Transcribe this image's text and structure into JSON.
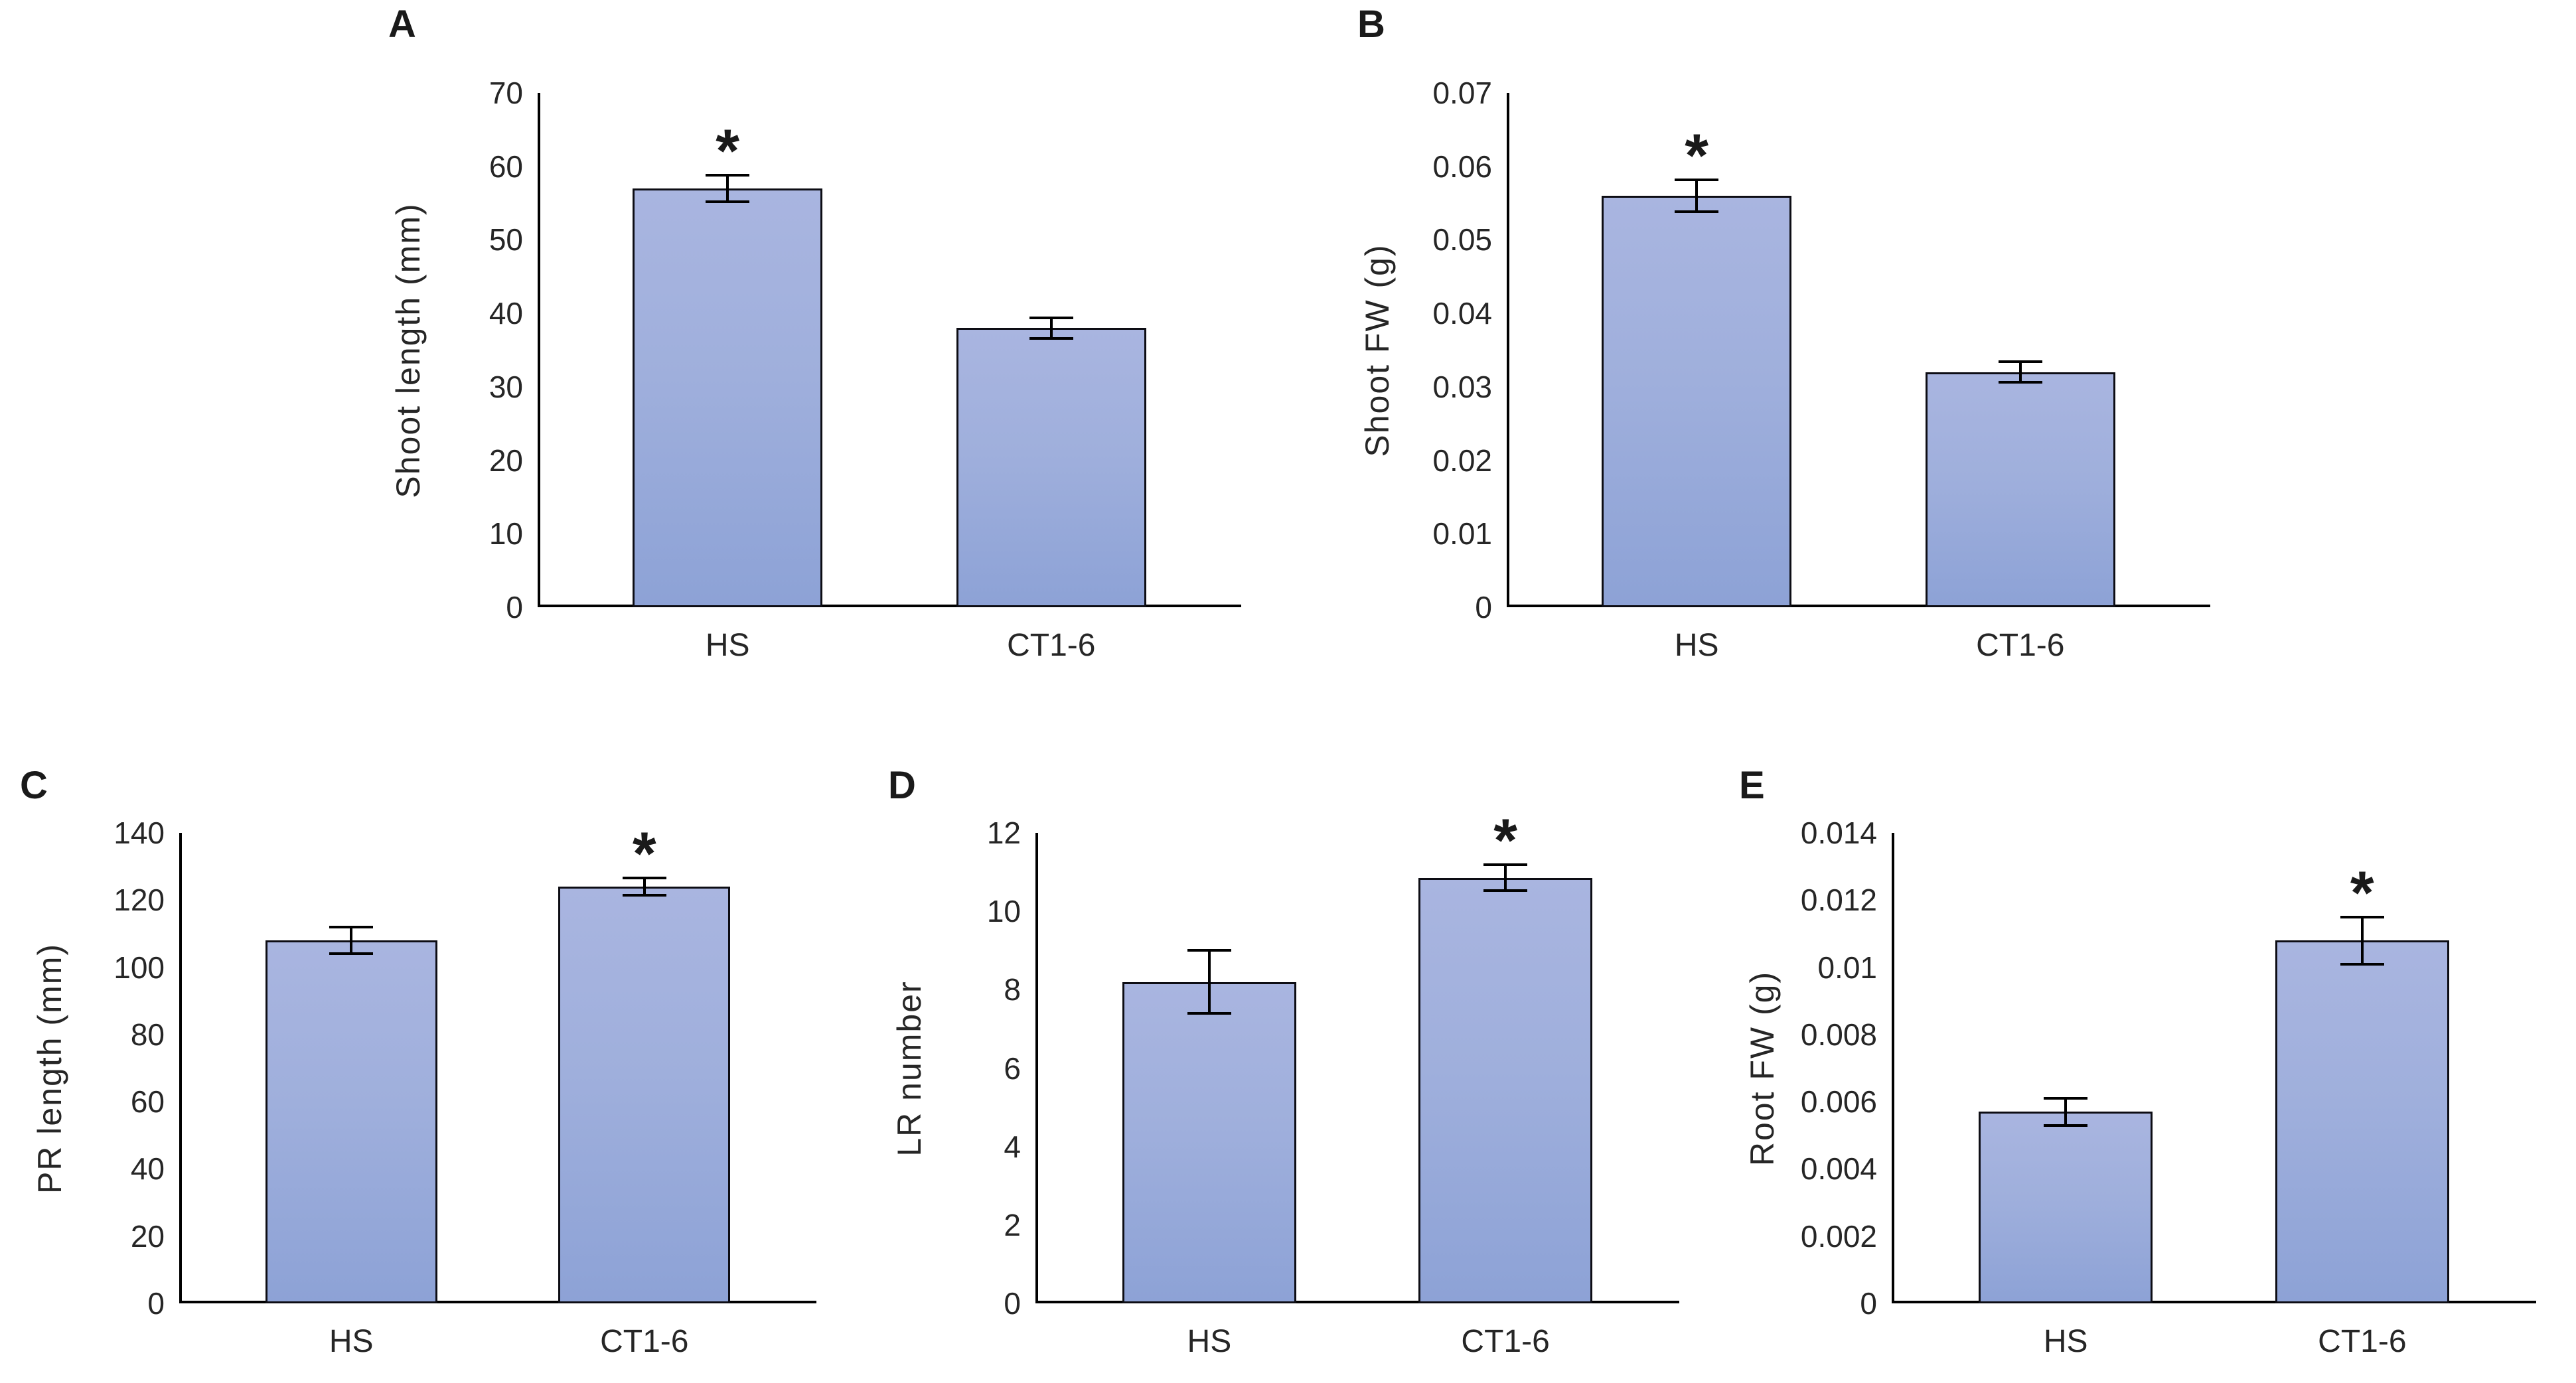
{
  "figure": {
    "bar_fill_top": "#a9b5e0",
    "bar_fill_bottom": "#8da2d6",
    "bar_border": "#0d0d14",
    "axis_color": "#000000",
    "text_color": "#262626",
    "sig_marker": "*"
  },
  "chart_data": [
    {
      "type": "bar",
      "panel": "A",
      "ylabel": "Shoot length (mm)",
      "categories": [
        "HS",
        "CT1-6"
      ],
      "values": [
        57,
        38
      ],
      "errors": [
        1.8,
        1.4
      ],
      "significant": [
        true,
        false
      ],
      "ylim": [
        0,
        70
      ],
      "ytick_step": 10,
      "ytick_labels": [
        "0",
        "10",
        "20",
        "30",
        "40",
        "50",
        "60",
        "70"
      ],
      "grid": false,
      "legend": "none"
    },
    {
      "type": "bar",
      "panel": "B",
      "ylabel": "Shoot FW (g)",
      "categories": [
        "HS",
        "CT1-6"
      ],
      "values": [
        0.056,
        0.032
      ],
      "errors": [
        0.0022,
        0.0014
      ],
      "significant": [
        true,
        false
      ],
      "ylim": [
        0,
        0.07
      ],
      "ytick_step": 0.01,
      "ytick_labels": [
        "0",
        "0.01",
        "0.02",
        "0.03",
        "0.04",
        "0.05",
        "0.06",
        "0.07"
      ],
      "grid": false,
      "legend": "none"
    },
    {
      "type": "bar",
      "panel": "C",
      "ylabel": "PR length (mm)",
      "categories": [
        "HS",
        "CT1-6"
      ],
      "values": [
        108,
        124
      ],
      "errors": [
        4,
        2.5
      ],
      "significant": [
        false,
        true
      ],
      "ylim": [
        0,
        140
      ],
      "ytick_step": 20,
      "ytick_labels": [
        "0",
        "20",
        "40",
        "60",
        "80",
        "100",
        "120",
        "140"
      ],
      "grid": false,
      "legend": "none"
    },
    {
      "type": "bar",
      "panel": "D",
      "ylabel": "LR number",
      "categories": [
        "HS",
        "CT1-6"
      ],
      "values": [
        8.2,
        10.85
      ],
      "errors": [
        0.8,
        0.33
      ],
      "significant": [
        false,
        true
      ],
      "ylim": [
        0,
        12
      ],
      "ytick_step": 2,
      "ytick_labels": [
        "0",
        "2",
        "4",
        "6",
        "8",
        "10",
        "12"
      ],
      "grid": false,
      "legend": "none"
    },
    {
      "type": "bar",
      "panel": "E",
      "ylabel": "Root FW (g)",
      "categories": [
        "HS",
        "CT1-6"
      ],
      "values": [
        0.0057,
        0.0108
      ],
      "errors": [
        0.0004,
        0.0007
      ],
      "significant": [
        false,
        true
      ],
      "ylim": [
        0,
        0.014
      ],
      "ytick_step": 0.002,
      "ytick_labels": [
        "0",
        "0.002",
        "0.004",
        "0.006",
        "0.008",
        "0.01",
        "0.012",
        "0.014"
      ],
      "grid": false,
      "legend": "none"
    }
  ]
}
